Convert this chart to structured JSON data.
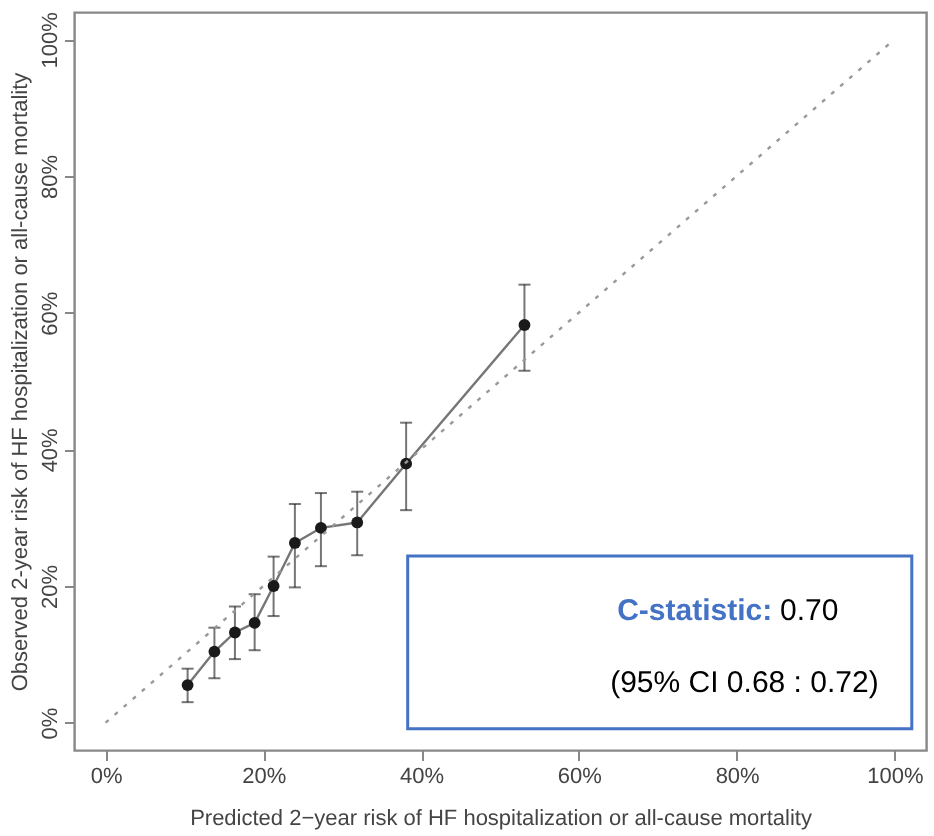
{
  "chart_data": {
    "type": "line",
    "xlabel": "Predicted 2−year risk of HF hospitalization or all-cause mortality",
    "ylabel": "Observed 2-year risk of HF hospitalization or all-cause mortality",
    "x": [
      10.4,
      13.8,
      16.4,
      18.9,
      21.3,
      24.0,
      27.3,
      31.9,
      38.1,
      53.1
    ],
    "series": [
      {
        "color": "#1a1a1a",
        "marker": "circle",
        "line_style": "solid",
        "values": [
          5.5,
          10.4,
          13.2,
          14.6,
          20.0,
          26.3,
          28.5,
          29.3,
          37.9,
          58.2
        ],
        "errors": [
          [
            3.0,
            7.9
          ],
          [
            6.5,
            13.9
          ],
          [
            9.3,
            17.0
          ],
          [
            10.6,
            18.8
          ],
          [
            15.6,
            24.3
          ],
          [
            19.8,
            32.0
          ],
          [
            22.9,
            33.6
          ],
          [
            24.5,
            33.8
          ],
          [
            31.1,
            43.9
          ],
          [
            51.5,
            64.1
          ]
        ]
      },
      {
        "x": [
          0,
          100
        ],
        "values": [
          0,
          100
        ],
        "color": "#999999",
        "marker": "none",
        "line_style": "dotted"
      }
    ],
    "xlim": [
      -4,
      104
    ],
    "ylim": [
      -4,
      104
    ],
    "xticks": [
      {
        "value": 0,
        "label": "0%"
      },
      {
        "value": 20,
        "label": "20%"
      },
      {
        "value": 40,
        "label": "40%"
      },
      {
        "value": 60,
        "label": "60%"
      },
      {
        "value": 80,
        "label": "80%"
      },
      {
        "value": 100,
        "label": "100%"
      }
    ],
    "yticks": [
      {
        "value": 0,
        "label": "0%"
      },
      {
        "value": 20,
        "label": "20%"
      },
      {
        "value": 40,
        "label": "40%"
      },
      {
        "value": 60,
        "label": "60%"
      },
      {
        "value": 80,
        "label": "80%"
      },
      {
        "value": 100,
        "label": "100%"
      }
    ],
    "grid": false,
    "annotations": [
      "C-statistic:",
      "0.70",
      "(95% CI 0.68 : 0.72)"
    ]
  }
}
